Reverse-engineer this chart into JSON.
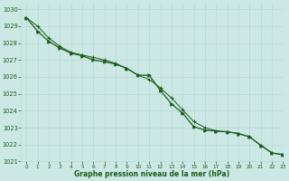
{
  "title": "Graphe pression niveau de la mer (hPa)",
  "bg_color": "#cce8e4",
  "grid_color": "#b8d8d4",
  "line_color": "#1a5c1a",
  "xlim": [
    -0.5,
    23
  ],
  "ylim": [
    1021,
    1030.4
  ],
  "xticks": [
    0,
    1,
    2,
    3,
    4,
    5,
    6,
    7,
    8,
    9,
    10,
    11,
    12,
    13,
    14,
    15,
    16,
    17,
    18,
    19,
    20,
    21,
    22,
    23
  ],
  "yticks": [
    1021,
    1022,
    1023,
    1024,
    1025,
    1026,
    1027,
    1028,
    1029,
    1030
  ],
  "series1_x": [
    0,
    1,
    2,
    3,
    4,
    5,
    6,
    7,
    8,
    9,
    10,
    11,
    12,
    13,
    14,
    15,
    16,
    17,
    18,
    19,
    20,
    21,
    22,
    23
  ],
  "series1_y": [
    1029.5,
    1029.0,
    1028.3,
    1027.8,
    1027.45,
    1027.3,
    1027.15,
    1027.0,
    1026.8,
    1026.5,
    1026.1,
    1025.85,
    1025.35,
    1024.75,
    1024.05,
    1023.35,
    1023.0,
    1022.8,
    1022.75,
    1022.65,
    1022.45,
    1021.95,
    1021.5,
    1021.4
  ],
  "series2_x": [
    0,
    1,
    2,
    3,
    4,
    5,
    6,
    7,
    8,
    9,
    10,
    11,
    12,
    13,
    14,
    15,
    16,
    17,
    18,
    19,
    20,
    21,
    22,
    23
  ],
  "series2_y": [
    1029.5,
    1028.7,
    1028.1,
    1027.7,
    1027.4,
    1027.25,
    1027.0,
    1026.9,
    1026.75,
    1026.5,
    1026.1,
    1026.1,
    1025.2,
    1024.4,
    1023.85,
    1023.05,
    1022.85,
    1022.8,
    1022.75,
    1022.65,
    1022.45,
    1021.95,
    1021.5,
    1021.4
  ]
}
